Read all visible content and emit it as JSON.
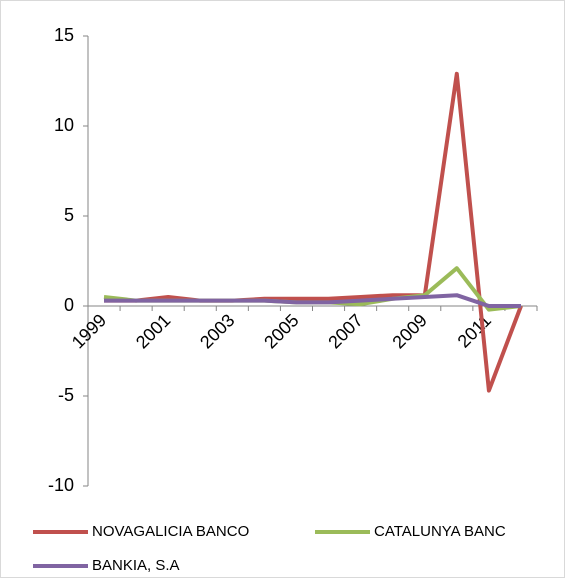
{
  "chart_data": {
    "type": "line",
    "categories": [
      "1999",
      null,
      "2001",
      null,
      "2003",
      null,
      "2005",
      null,
      "2007",
      null,
      "2009",
      null,
      "2011",
      null
    ],
    "series": [
      {
        "name": "NOVAGALICIA BANCO",
        "color": "#c0504d",
        "values": [
          0.3,
          0.3,
          0.5,
          0.3,
          0.3,
          0.4,
          0.4,
          0.4,
          0.5,
          0.6,
          0.6,
          12.9,
          -4.7,
          0
        ]
      },
      {
        "name": "CATALUNYA BANC",
        "color": "#9bbb59",
        "values": [
          0.5,
          0.3,
          0.3,
          0.3,
          0.3,
          0.3,
          0.2,
          0.2,
          0.1,
          0.4,
          0.6,
          2.1,
          -0.2,
          0
        ]
      },
      {
        "name": "BANKIA, S.A",
        "color": "#8064a2",
        "values": [
          0.3,
          0.3,
          0.3,
          0.3,
          0.3,
          0.3,
          0.2,
          0.2,
          0.3,
          0.4,
          0.5,
          0.6,
          0,
          0
        ]
      }
    ],
    "ylim": [
      -10,
      15
    ],
    "yticks": [
      -10,
      -5,
      0,
      5,
      10,
      15
    ],
    "grid": false,
    "legend": "bottom"
  }
}
